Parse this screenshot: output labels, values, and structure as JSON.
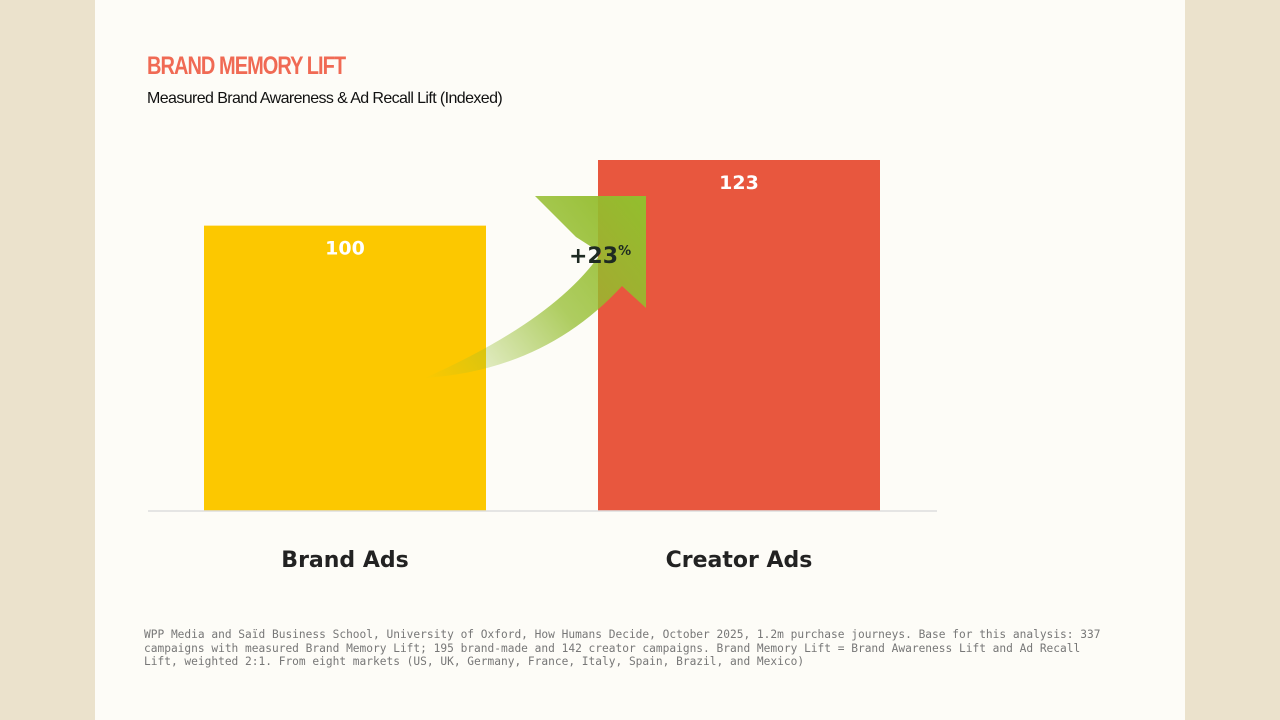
{
  "colors": {
    "page_bg": "#ebe2cc",
    "slide_bg": "#fdfcf7",
    "title": "#f06a54",
    "brand_bar": "#fcc800",
    "creator_bar": "#e8573e",
    "arrow": "#94bd2e"
  },
  "chart_data": {
    "type": "bar",
    "title": "BRAND MEMORY LIFT",
    "subtitle": "Measured Brand Awareness & Ad Recall Lift (Indexed)",
    "categories": [
      "Brand Ads",
      "Creator Ads"
    ],
    "values": [
      100,
      123
    ],
    "value_labels": [
      "100",
      "123"
    ],
    "colors": [
      "#fcc800",
      "#e8573e"
    ],
    "ylim": [
      0,
      123
    ],
    "grid": false,
    "annotation": {
      "text": "+23",
      "suffix": "%",
      "icon": "curved-arrow-icon"
    }
  },
  "source_note": "WPP Media and Saïd Business School, University of Oxford, How Humans Decide, October 2025, 1.2m purchase journeys. Base for this analysis: 337 campaigns with measured Brand Memory Lift; 195 brand-made and 142 creator campaigns. Brand Memory Lift = Brand Awareness Lift and Ad Recall Lift, weighted 2:1. From eight markets (US, UK, Germany, France, Italy, Spain, Brazil, and Mexico)"
}
